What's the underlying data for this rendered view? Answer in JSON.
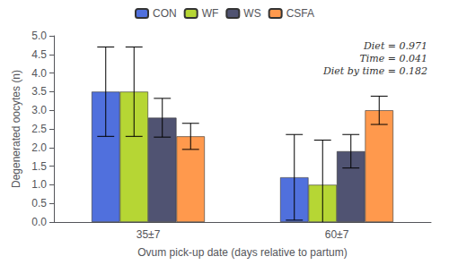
{
  "chart_data": {
    "type": "bar",
    "xlabel": "Ovum pick-up date (days relative to partum)",
    "ylabel": "Degenerated oocytes (n)",
    "categories": [
      "35±7",
      "60±7"
    ],
    "series": [
      {
        "name": "CON",
        "values": [
          3.5,
          1.2
        ],
        "errors": [
          1.2,
          1.15
        ]
      },
      {
        "name": "WF",
        "values": [
          3.5,
          1.0
        ],
        "errors": [
          1.2,
          1.2
        ]
      },
      {
        "name": "WS",
        "values": [
          2.8,
          1.9
        ],
        "errors": [
          0.52,
          0.45
        ]
      },
      {
        "name": "CSFA",
        "values": [
          2.3,
          3.0
        ],
        "errors": [
          0.35,
          0.38
        ]
      }
    ],
    "ylim": [
      0,
      5
    ],
    "yticks": [
      {
        "value": 0,
        "label": "0.0"
      },
      {
        "value": 0.5,
        "label": "0.5"
      },
      {
        "value": 1.0,
        "label": "1.0"
      },
      {
        "value": 1.5,
        "label": "1.5"
      },
      {
        "value": 2.0,
        "label": "2.0"
      },
      {
        "value": 2.5,
        "label": "2.5"
      },
      {
        "value": 3.0,
        "label": "3.0"
      },
      {
        "value": 3.5,
        "label": "3.5"
      },
      {
        "value": 4.0,
        "label": "4.0"
      },
      {
        "value": 4.5,
        "label": "4.5"
      },
      {
        "value": 5.0,
        "label": "5.0"
      }
    ],
    "annotation": "Diet = 0.971\nTime = 0.041\nDiet by time = 0.182",
    "legend": "top",
    "grid": false
  }
}
